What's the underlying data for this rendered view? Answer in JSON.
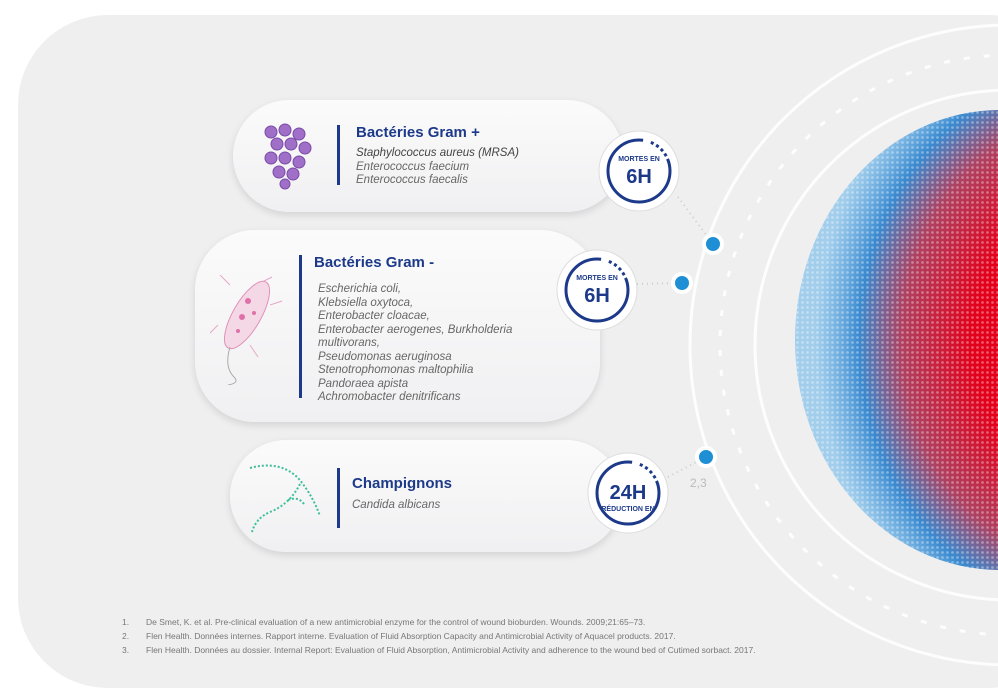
{
  "cards": [
    {
      "title": "Bactéries Gram +",
      "species": [
        "Staphylococcus aureus (MRSA)",
        "Enterococcus faecium",
        "Enterococcus faecalis"
      ],
      "badge": {
        "top": "MORTES EN",
        "main": "6H"
      }
    },
    {
      "title": "Bactéries Gram -",
      "species": [
        "Escherichia coli,",
        "Klebsiella oxytoca,",
        "Enterobacter cloacae,",
        "Enterobacter aerogenes, Burkholderia",
        "multivorans,",
        "Pseudomonas aeruginosa",
        "Stenotrophomonas maltophilia",
        "Pandoraea apista",
        "Achromobacter denitrificans"
      ],
      "badge": {
        "top": "MORTES EN",
        "main": "6H"
      }
    },
    {
      "title": "Champignons",
      "species": [
        "Candida albicans"
      ],
      "badge": {
        "main": "24H",
        "bottom": "RÉDUCTION EN"
      }
    }
  ],
  "superscript": "2,3",
  "references": [
    {
      "number": "1.",
      "text": "De Smet, K. et al. Pre-clinical evaluation of a new antimicrobial enzyme for the control of wound bioburden. Wounds. 2009;21:65–73."
    },
    {
      "number": "2.",
      "text": "Flen Health. Données internes. Rapport interne. Evaluation of Fluid Absorption Capacity and Antimicrobial Activity of Aquacel products. 2017."
    },
    {
      "number": "3.",
      "text": "Flen Health. Données au dossier. Internal Report: Evaluation of Fluid Absorption, Antimicrobial Activity and adherence to the wound bed of Cutimed sorbact. 2017."
    }
  ]
}
